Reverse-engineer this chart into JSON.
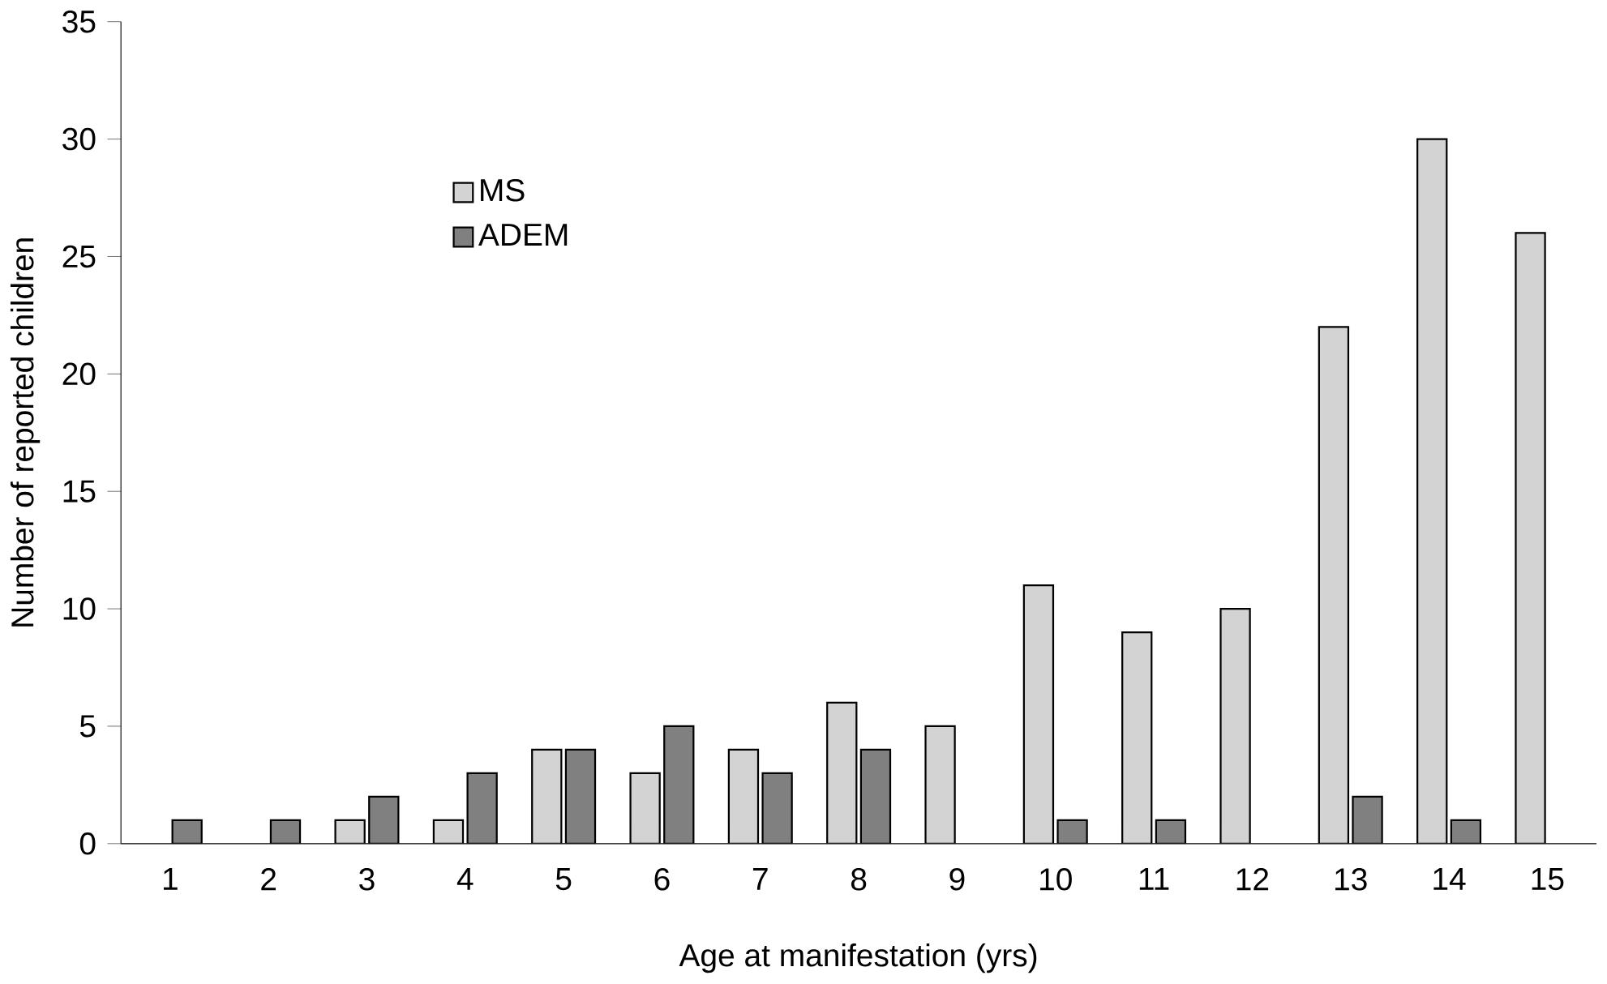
{
  "chart_data": {
    "type": "bar",
    "xlabel": "Age at manifestation (yrs)",
    "ylabel": "Number of reported children",
    "categories": [
      "1",
      "2",
      "3",
      "4",
      "5",
      "6",
      "7",
      "8",
      "9",
      "10",
      "11",
      "12",
      "13",
      "14",
      "15"
    ],
    "series": [
      {
        "name": "MS",
        "color": "#d3d3d3",
        "values": [
          0,
          0,
          1,
          1,
          4,
          3,
          4,
          6,
          5,
          11,
          9,
          10,
          22,
          30,
          26
        ]
      },
      {
        "name": "ADEM",
        "color": "#808080",
        "values": [
          1,
          1,
          2,
          3,
          4,
          5,
          3,
          4,
          0,
          1,
          1,
          0,
          2,
          1,
          0
        ]
      }
    ],
    "ylim": [
      0,
      35
    ],
    "yticks": [
      0,
      5,
      10,
      15,
      20,
      25,
      30,
      35
    ],
    "grid": false,
    "legend": "top left"
  }
}
